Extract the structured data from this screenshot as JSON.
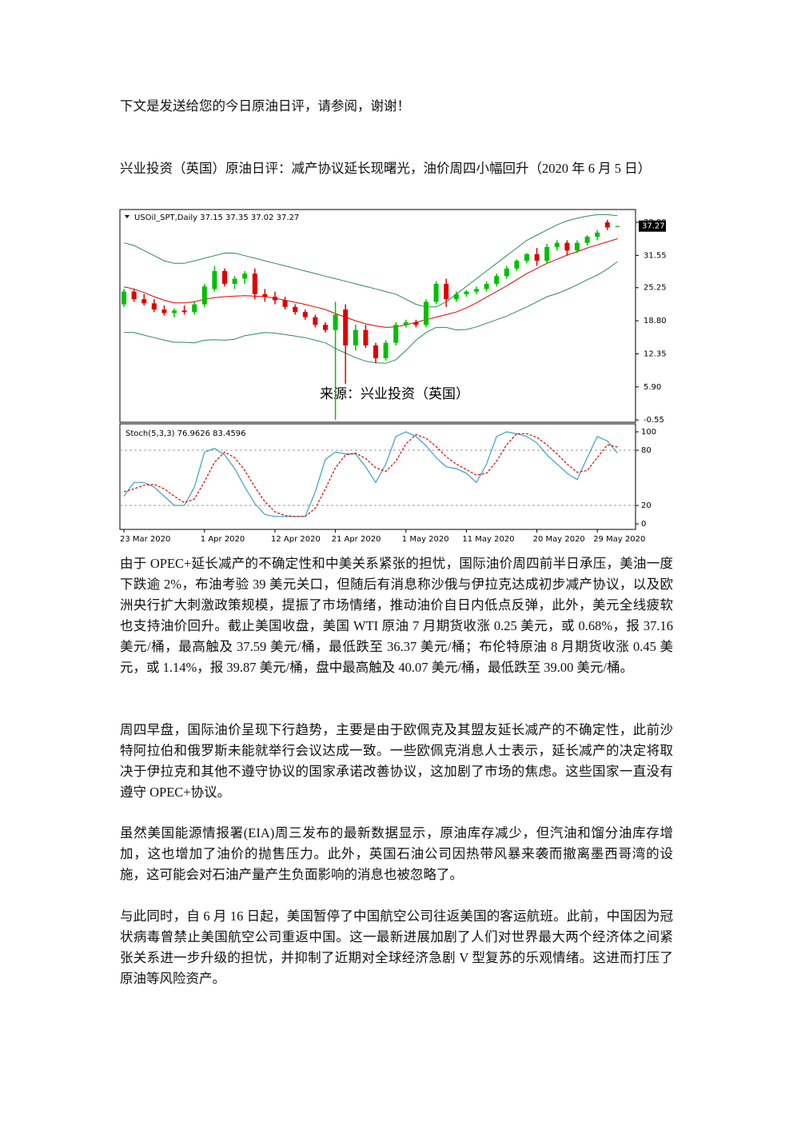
{
  "intro": "下文是发送给您的今日原油日评，请参阅，谢谢！",
  "heading": "兴业投资（英国）原油日评：减产协议延长现曙光，油价周四小幅回升（2020 年 6 月 5 日）",
  "chart_data": [
    {
      "type": "candlestick",
      "header": "USOil_SPT,Daily 37.15 37.35 37.02 37.27",
      "annotation": "来源：兴业投资（英国）",
      "ylim": [
        -1.0,
        40.5
      ],
      "yticks": [
        {
          "value": 38,
          "label": "38.00"
        },
        31.55,
        25.25,
        {
          "value": 18.8,
          "label": "18.80"
        },
        12.35,
        {
          "value": 5.9,
          "label": "5.90"
        },
        -0.55
      ],
      "up_color": "#00c000",
      "down_color": "#e00000",
      "band_color": "#2e8b57",
      "middle_color": "#e00000",
      "open": [
        22,
        24.5,
        23,
        22.2,
        21,
        20.3,
        20.8,
        20.5,
        22,
        25,
        28.5,
        26,
        27,
        28,
        24,
        23.5,
        22.8,
        21.5,
        20.5,
        19.5,
        18,
        17,
        21,
        14,
        17,
        14,
        11.5,
        14.5,
        18,
        18.5,
        18,
        22.5,
        26,
        23,
        24,
        24.5,
        25,
        26,
        27.5,
        29,
        30.5,
        31.8,
        30.5,
        33.2,
        34,
        32.5,
        34,
        35.2,
        38,
        37.15
      ],
      "high": [
        25,
        25,
        24,
        23,
        21.8,
        21.2,
        21.8,
        22.5,
        26,
        29.5,
        29,
        27.5,
        28.5,
        29,
        25,
        24.5,
        23.5,
        22,
        21,
        20,
        18.5,
        22.5,
        22,
        18,
        18,
        14.5,
        15,
        18.5,
        19,
        19,
        23,
        26.5,
        27,
        24.5,
        24.8,
        25.5,
        26.5,
        28,
        29.5,
        30.8,
        32,
        33,
        33.8,
        34.5,
        34.5,
        34.5,
        35.5,
        36.5,
        38.5,
        37.35
      ],
      "low": [
        21.5,
        22.5,
        21.8,
        20.5,
        19.8,
        19.5,
        20,
        20,
        21.5,
        24.5,
        25.5,
        25,
        26,
        23,
        22.5,
        22,
        21,
        20,
        19,
        17.5,
        16.5,
        -0.5,
        6.5,
        13,
        13.5,
        10.5,
        11,
        14,
        17.5,
        17.5,
        17.5,
        22,
        21.5,
        22.5,
        23.5,
        24,
        24.5,
        25.5,
        27,
        28.5,
        30,
        29.5,
        30,
        32.5,
        31.5,
        32,
        33.5,
        34.5,
        36.5,
        37.02
      ],
      "close": [
        24.5,
        23,
        22.2,
        21,
        20.3,
        20.8,
        20.5,
        22,
        25.5,
        28.5,
        26,
        27,
        28,
        24,
        23.5,
        22.8,
        21.5,
        20.5,
        19.5,
        18,
        17,
        20,
        14,
        17,
        14,
        11.5,
        14.5,
        18,
        18.5,
        18,
        22.5,
        26,
        23,
        24,
        24.5,
        25,
        26,
        27.5,
        29,
        30.5,
        31.8,
        30.5,
        33.2,
        34,
        32.5,
        34,
        35.2,
        36,
        37,
        37.27
      ],
      "upper_band": [
        34,
        33.5,
        32.5,
        31.5,
        30.5,
        30,
        30,
        30.5,
        31,
        31.5,
        32,
        32,
        31.5,
        31,
        30.5,
        30,
        29.5,
        29,
        28.5,
        28,
        27.5,
        27,
        26.5,
        26,
        25.5,
        25,
        24.5,
        24,
        23,
        22,
        21.5,
        21.5,
        22.5,
        24,
        25.5,
        27,
        28.5,
        30,
        31.5,
        33,
        34.5,
        35.5,
        36.5,
        37.5,
        38.3,
        38.8,
        39.2,
        39.5,
        39.5,
        39.3
      ],
      "middle_band": [
        25.4,
        25,
        24.3,
        23.5,
        22.8,
        22.3,
        22.3,
        22.5,
        23,
        23.3,
        23.5,
        23.6,
        23.7,
        23.6,
        23.5,
        23.2,
        22.8,
        22.4,
        22,
        21.5,
        21,
        20.2,
        19.5,
        18.8,
        18.2,
        17.8,
        17.5,
        17.6,
        18,
        18.5,
        19,
        19.5,
        20,
        20.5,
        21.3,
        22.3,
        23.4,
        24.5,
        25.6,
        26.8,
        28,
        29,
        30,
        30.8,
        31.6,
        32.3,
        33,
        33.6,
        34.2,
        34.8
      ],
      "lower_band": [
        16.5,
        16.5,
        16,
        15.5,
        15,
        14.6,
        14.6,
        14.5,
        15,
        15.1,
        15,
        15.2,
        15.9,
        16.2,
        16.5,
        16.4,
        16.1,
        15.8,
        15.5,
        15,
        14.5,
        13.4,
        12.5,
        11.6,
        10.9,
        10.6,
        10.5,
        11.2,
        13,
        15,
        16.5,
        17.5,
        17.5,
        17,
        17.1,
        17.6,
        18.3,
        19,
        19.7,
        20.6,
        21.5,
        22.5,
        23.5,
        24.1,
        24.9,
        25.8,
        26.8,
        27.7,
        28.9,
        30.3
      ]
    },
    {
      "type": "line",
      "title": "Stoch(5,3,3) 76.9626 83.4596",
      "ylim": [
        -4.3,
        108.7
      ],
      "yticks": [
        0,
        20,
        80,
        100
      ],
      "levels": [
        20,
        80
      ],
      "categories": [
        "23 Mar 2020",
        null,
        null,
        null,
        null,
        null,
        null,
        null,
        "1 Apr 2020",
        null,
        null,
        null,
        null,
        null,
        null,
        "12 Apr 2020",
        null,
        null,
        null,
        null,
        null,
        "21 Apr 2020",
        null,
        null,
        null,
        null,
        null,
        null,
        "1 May 2020",
        null,
        null,
        null,
        null,
        null,
        "11 May 2020",
        null,
        null,
        null,
        null,
        null,
        null,
        "20 May 2020",
        null,
        null,
        null,
        null,
        null,
        "29 May 2020",
        null,
        null
      ],
      "series": [
        {
          "color": "#3aa0c8",
          "dashed": false,
          "values": [
            30,
            45,
            45,
            40,
            30,
            20,
            20,
            40,
            78,
            82,
            75,
            60,
            40,
            22,
            10,
            8,
            8,
            8,
            8,
            35,
            70,
            78,
            76,
            76,
            62,
            45,
            65,
            95,
            100,
            95,
            85,
            72,
            62,
            60,
            55,
            45,
            65,
            95,
            100,
            98,
            95,
            88,
            75,
            65,
            55,
            48,
            72,
            95,
            90,
            76.9626
          ]
        },
        {
          "color": "#e00000",
          "dashed": true,
          "values": [
            35,
            38,
            42,
            43,
            38,
            30,
            23,
            27,
            46,
            67,
            78,
            72,
            58,
            40,
            24,
            13,
            9,
            8,
            8,
            17,
            38,
            61,
            75,
            77,
            71,
            61,
            57,
            68,
            87,
            97,
            93,
            84,
            73,
            65,
            59,
            53,
            55,
            68,
            86,
            98,
            98,
            94,
            86,
            76,
            65,
            56,
            58,
            72,
            86,
            83.4596
          ]
        }
      ]
    }
  ],
  "paragraphs": [
    "由于 OPEC+延长减产的不确定性和中美关系紧张的担忧，国际油价周四前半日承压，美油一度下跌逾 2%，布油考验 39 美元关口，但随后有消息称沙俄与伊拉克达成初步减产协议，以及欧洲央行扩大刺激政策规模，提振了市场情绪，推动油价自日内低点反弹，此外，美元全线疲软也支持油价回升。截止美国收盘，美国 WTI 原油 7 月期货收涨 0.25 美元，或 0.68%，报 37.16 美元/桶，最高触及 37.59 美元/桶，最低跌至 36.37 美元/桶；布伦特原油 8 月期货收涨 0.45 美元，或 1.14%，报 39.87 美元/桶，盘中最高触及 40.07 美元/桶，最低跌至 39.00 美元/桶。",
    "周四早盘，国际油价呈现下行趋势，主要是由于欧佩克及其盟友延长减产的不确定性，此前沙特阿拉伯和俄罗斯未能就举行会议达成一致。一些欧佩克消息人士表示，延长减产的决定将取决于伊拉克和其他不遵守协议的国家承诺改善协议，这加剧了市场的焦虑。这些国家一直没有遵守 OPEC+协议。",
    "虽然美国能源情报署(EIA)周三发布的最新数据显示，原油库存减少，但汽油和馏分油库存增加，这也增加了油价的抛售压力。此外，英国石油公司因热带风暴来袭而撤离墨西哥湾的设施，这可能会对石油产量产生负面影响的消息也被忽略了。",
    "与此同时，自 6 月 16 日起，美国暂停了中国航空公司往返美国的客运航班。此前，中国因为冠状病毒曾禁止美国航空公司重返中国。这一最新进展加剧了人们对世界最大两个经济体之间紧张关系进一步升级的担忧，并抑制了近期对全球经济急剧 V 型复苏的乐观情绪。这进而打压了原油等风险资产。"
  ]
}
